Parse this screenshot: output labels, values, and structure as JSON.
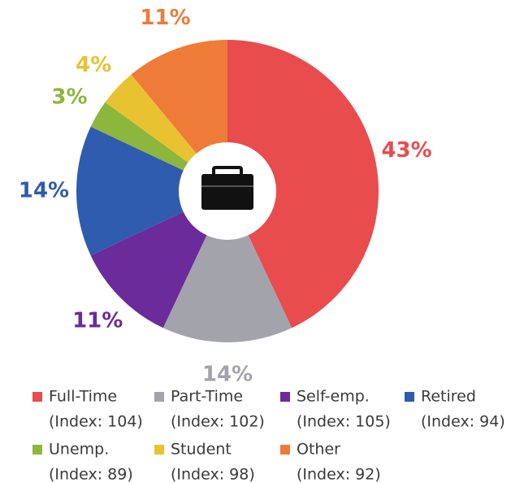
{
  "chart_data": {
    "type": "donut",
    "categories": [
      "Full-Time",
      "Part-Time",
      "Self-emp.",
      "Retired",
      "Unemp.",
      "Student",
      "Other"
    ],
    "legend_notes": [
      "(Index: 104)",
      "(Index: 102)",
      "(Index: 105)",
      "(Index: 94)",
      "(Index: 89)",
      "(Index: 98)",
      "(Index: 92)"
    ],
    "values": [
      43,
      14,
      11,
      14,
      3,
      4,
      11
    ],
    "value_labels": [
      "43%",
      "14%",
      "11%",
      "14%",
      "3%",
      "4%",
      "11%"
    ],
    "colors": [
      "#e84c4c",
      "#a3a3ab",
      "#6b2b9b",
      "#2f5cae",
      "#8db63d",
      "#e9c232",
      "#ef7b39"
    ]
  }
}
